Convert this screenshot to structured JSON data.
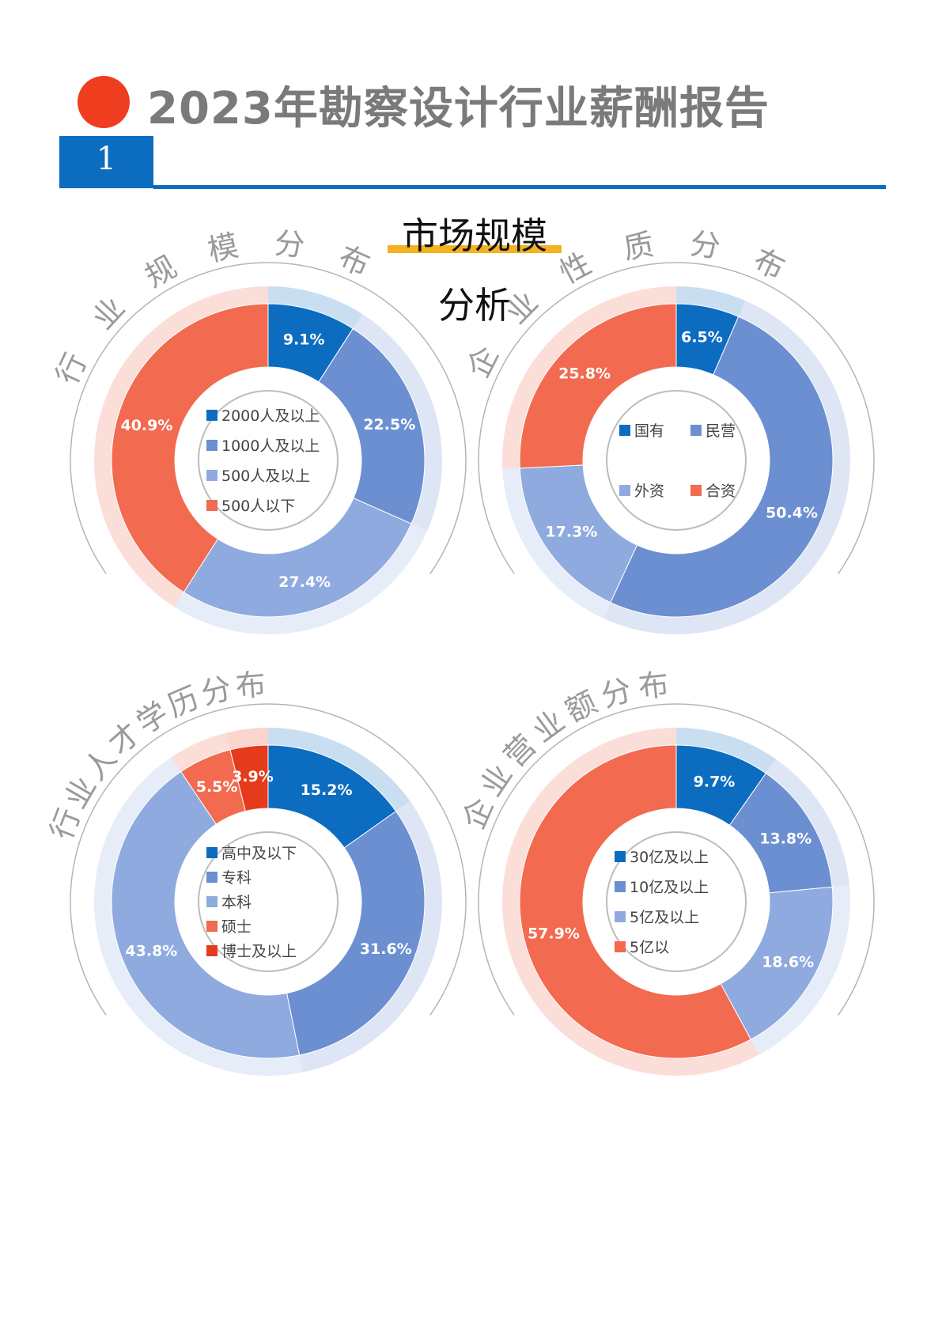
{
  "header": {
    "title": "2023年勘察设计行业薪酬报告",
    "section_number": "1",
    "section_title_line1": "市场规模",
    "section_title_line2": "分析"
  },
  "chart_data": [
    {
      "type": "pie",
      "title": "行业规模分布",
      "categories": [
        "2000人及以上",
        "1000人及以上",
        "500人及以上",
        "500人以下"
      ],
      "values": [
        9.1,
        22.5,
        27.4,
        40.9
      ],
      "labels": [
        "9.1%",
        "22.5%",
        "27.4%",
        "40.9%"
      ],
      "colors": [
        "#0b6cc0",
        "#6b8fd1",
        "#8faadf",
        "#f26a4f"
      ],
      "legend": "center"
    },
    {
      "type": "pie",
      "title": "企业性质分布",
      "categories": [
        "国有",
        "民营",
        "外资",
        "合资"
      ],
      "values": [
        6.5,
        50.4,
        17.3,
        25.8
      ],
      "labels": [
        "6.5%",
        "50.4%",
        "17.3%",
        "25.8%"
      ],
      "colors": [
        "#0b6cc0",
        "#6b8fd1",
        "#8faadf",
        "#f26a4f"
      ],
      "legend": "center"
    },
    {
      "type": "pie",
      "title": "行业人才学历分布",
      "categories": [
        "高中及以下",
        "专科",
        "本科",
        "硕士",
        "博士及以上"
      ],
      "values": [
        15.2,
        31.6,
        43.8,
        5.5,
        3.9
      ],
      "labels": [
        "15.2%",
        "31.6%",
        "43.8%",
        "5.5%",
        "3.9%"
      ],
      "colors": [
        "#0b6cc0",
        "#6b8fd1",
        "#8faadf",
        "#f26a4f",
        "#e63a1c"
      ],
      "legend": "center"
    },
    {
      "type": "pie",
      "title": "企业营业额分布",
      "categories": [
        "30亿及以上",
        "10亿及以上",
        "5亿及以上",
        "5亿以"
      ],
      "values": [
        9.7,
        13.8,
        18.6,
        57.9
      ],
      "labels": [
        "9.7%",
        "13.8%",
        "18.6%",
        "57.9%"
      ],
      "colors": [
        "#0b6cc0",
        "#6b8fd1",
        "#8faadf",
        "#f26a4f"
      ],
      "legend": "center"
    }
  ]
}
